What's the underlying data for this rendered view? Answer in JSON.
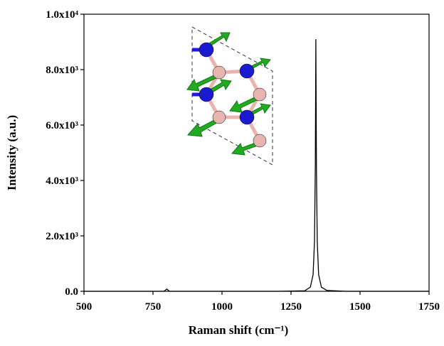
{
  "chart_data": {
    "type": "line",
    "xlabel": "Raman shift (cm⁻¹)",
    "ylabel": "Intensity (a.u.)",
    "x": [
      500,
      790,
      800,
      810,
      1200,
      1300,
      1320,
      1330,
      1335,
      1338,
      1340,
      1342,
      1345,
      1350,
      1360,
      1380,
      1450,
      1750
    ],
    "series": [
      {
        "color": "#000000",
        "values": [
          0,
          0,
          80,
          0,
          0,
          20,
          150,
          600,
          1800,
          4500,
          9100,
          4500,
          1800,
          600,
          150,
          30,
          0,
          0
        ]
      }
    ],
    "xlim": [
      500,
      1750
    ],
    "xticks": [
      500,
      750,
      1000,
      1250,
      1500,
      1750
    ],
    "ylim": [
      0,
      10000
    ],
    "yticks": [
      {
        "value": 0,
        "label": "0.0"
      },
      {
        "value": 2000,
        "label": "2.0x10³"
      },
      {
        "value": 4000,
        "label": "4.0x10³"
      },
      {
        "value": 6000,
        "label": "6.0x10³"
      },
      {
        "value": 8000,
        "label": "8.0x10³"
      },
      {
        "value": 10000,
        "label": "1.0x10⁴"
      }
    ]
  }
}
